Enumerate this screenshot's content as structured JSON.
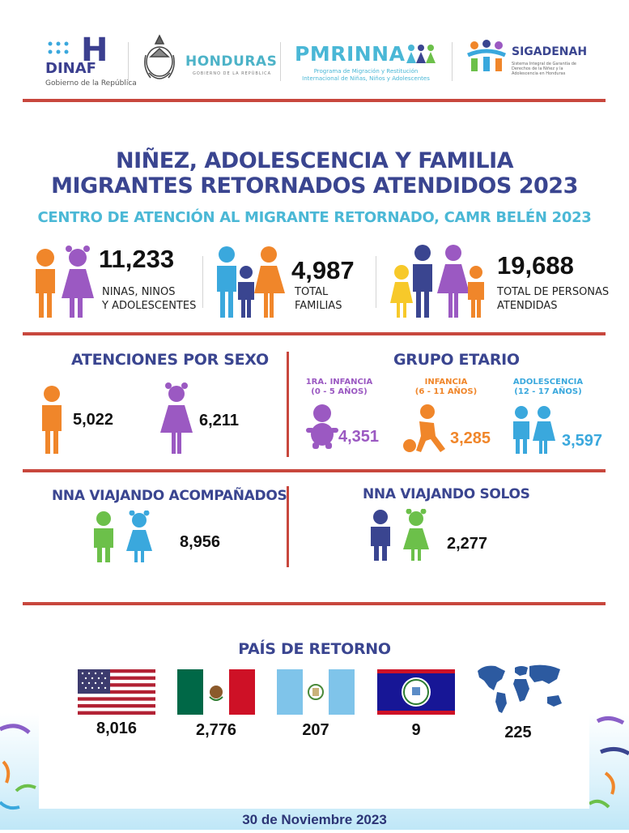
{
  "header": {
    "dinaf": {
      "mark": "H",
      "name": "DINAF",
      "sub": "Gobierno de la República"
    },
    "honduras": {
      "name": "HONDURAS",
      "sub": "GOBIERNO DE LA REPÚBLICA"
    },
    "pmrinna": {
      "name": "PMRINNA",
      "sub": "Programa de Migración y Restitución Internacional de Niñas, Niños y Adolescentes"
    },
    "sigadenah": {
      "name": "SIGADENAH",
      "sub": "Sistema Integral de Garantía de Derechos de la Niñez y la Adolescencia en Honduras"
    }
  },
  "title": {
    "line1": "NIÑEZ, ADOLESCENCIA Y FAMILIA",
    "line2": "MIGRANTES RETORNADOS ATENDIDOS 2023",
    "subtitle": "CENTRO DE ATENCIÓN AL MIGRANTE RETORNADO, CAMR BELÉN 2023"
  },
  "stats": [
    {
      "value": "11,233",
      "label1": "NINAS, NINOS",
      "label2": "Y ADOLESCENTES"
    },
    {
      "value": "4,987",
      "label1": "TOTAL",
      "label2": "FAMILIAS"
    },
    {
      "value": "19,688",
      "label1": "TOTAL DE PERSONAS",
      "label2": "ATENDIDAS"
    }
  ],
  "sexo": {
    "title": "ATENCIONES POR SEXO",
    "male": "5,022",
    "female": "6,211"
  },
  "etario": {
    "title": "GRUPO ETARIO",
    "groups": [
      {
        "label1": "1RA. INFANCIA",
        "label2": "(0 - 5 AÑOS)",
        "value": "4,351",
        "color": "#9b59c2"
      },
      {
        "label1": "INFANCIA",
        "label2": "(6 - 11 AÑOS)",
        "value": "3,285",
        "color": "#f0862a"
      },
      {
        "label1": "ADOLESCENCIA",
        "label2": "(12 - 17 AÑOS)",
        "value": "3,597",
        "color": "#3aa8dd"
      }
    ]
  },
  "acompanados": {
    "title": "NNA VIAJANDO ACOMPAÑADOS",
    "value": "8,956"
  },
  "solos": {
    "title": "NNA VIAJANDO SOLOS",
    "value": "2,277"
  },
  "pais": {
    "title": "PAÍS DE RETORNO",
    "countries": [
      {
        "flag": "usa-flag",
        "value": "8,016"
      },
      {
        "flag": "mexico-flag",
        "value": "2,776"
      },
      {
        "flag": "guatemala-flag",
        "value": "207"
      },
      {
        "flag": "belize-flag",
        "value": "9"
      },
      {
        "flag": "world-map",
        "value": "225"
      }
    ]
  },
  "footer": {
    "date": "30 de Noviembre 2023"
  },
  "colors": {
    "red_rule": "#c8473d",
    "navy": "#3a4590",
    "teal": "#4bb8d6",
    "orange": "#f0862a",
    "purple": "#9b59c2",
    "green": "#6cc04a",
    "blue": "#3aa8dd"
  }
}
